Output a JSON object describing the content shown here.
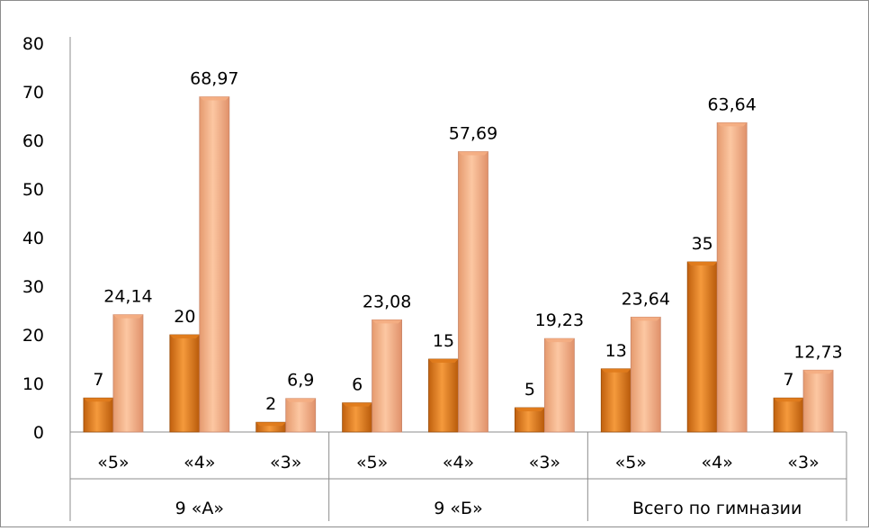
{
  "chart_data": {
    "type": "bar",
    "groups": [
      "9 «А»",
      "9 «Б»",
      "Всего по гимназии"
    ],
    "subcategories": [
      "«5»",
      "«4»",
      "«3»"
    ],
    "series": [
      {
        "values": [
          7,
          20,
          2,
          6,
          15,
          5,
          13,
          35,
          7
        ]
      },
      {
        "values": [
          24.14,
          68.97,
          6.9,
          23.08,
          57.69,
          19.23,
          23.64,
          63.64,
          12.73
        ]
      }
    ],
    "data_labels": [
      [
        "7",
        "20",
        "2",
        "6",
        "15",
        "5",
        "13",
        "35",
        "7"
      ],
      [
        "24,14",
        "68,97",
        "6,9",
        "23,08",
        "57,69",
        "19,23",
        "23,64",
        "63,64",
        "12,73"
      ]
    ],
    "y_ticks": [
      "0",
      "10",
      "20",
      "30",
      "40",
      "50",
      "60",
      "70",
      "80"
    ],
    "ylim": [
      0,
      80
    ],
    "grid": false,
    "legend": false
  },
  "colors": {
    "series_dark": "#e07b1c",
    "series_light": "#f4ad82",
    "axis": "#8c8c8c"
  }
}
